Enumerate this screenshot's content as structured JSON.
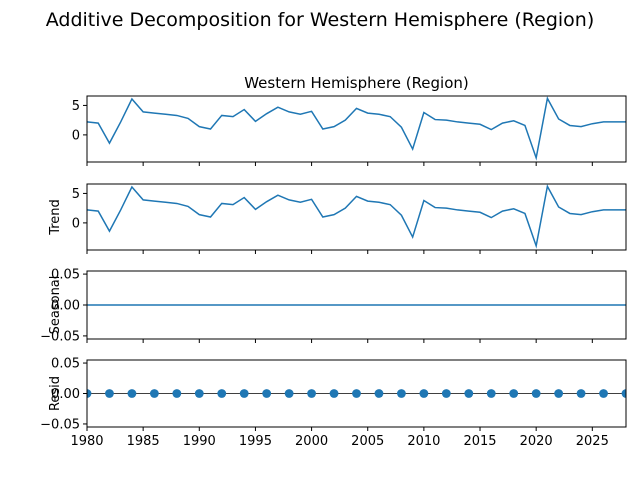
{
  "chart_data": {
    "type": "line",
    "title": "Additive Decomposition for Western Hemisphere (Region)",
    "x_ticks": [
      "1980",
      "1985",
      "1990",
      "1995",
      "2000",
      "2005",
      "2010",
      "2015",
      "2020",
      "2025"
    ],
    "xlim": [
      1980,
      2028
    ],
    "x": [
      1980,
      1981,
      1982,
      1983,
      1984,
      1985,
      1986,
      1987,
      1988,
      1989,
      1990,
      1991,
      1992,
      1993,
      1994,
      1995,
      1996,
      1997,
      1998,
      1999,
      2000,
      2001,
      2002,
      2003,
      2004,
      2005,
      2006,
      2007,
      2008,
      2009,
      2010,
      2011,
      2012,
      2013,
      2014,
      2015,
      2016,
      2017,
      2018,
      2019,
      2020,
      2021,
      2022,
      2023,
      2024,
      2025,
      2026,
      2027,
      2028
    ],
    "panels": [
      {
        "title": "Western Hemisphere (Region)",
        "ylabel": "",
        "ylim": [
          -4.6,
          6.6
        ],
        "yticks": [
          "5",
          "0"
        ],
        "ytick_values": [
          5,
          0
        ],
        "style": "line",
        "values": [
          2.2,
          2.0,
          -1.4,
          2.2,
          6.1,
          3.9,
          3.7,
          3.5,
          3.3,
          2.8,
          1.4,
          1.0,
          3.3,
          3.1,
          4.3,
          2.3,
          3.6,
          4.7,
          3.9,
          3.5,
          4.0,
          1.0,
          1.4,
          2.5,
          4.5,
          3.7,
          3.5,
          3.1,
          1.3,
          -2.4,
          3.8,
          2.6,
          2.5,
          2.2,
          2.0,
          1.8,
          0.9,
          2.0,
          2.4,
          1.6,
          -3.9,
          6.2,
          2.7,
          1.6,
          1.4,
          1.9,
          2.2,
          2.2,
          2.2
        ]
      },
      {
        "title": "",
        "ylabel": "Trend",
        "ylim": [
          -4.6,
          6.6
        ],
        "yticks": [
          "5",
          "0"
        ],
        "ytick_values": [
          5,
          0
        ],
        "style": "line",
        "values": [
          2.2,
          2.0,
          -1.4,
          2.2,
          6.1,
          3.9,
          3.7,
          3.5,
          3.3,
          2.8,
          1.4,
          1.0,
          3.3,
          3.1,
          4.3,
          2.3,
          3.6,
          4.7,
          3.9,
          3.5,
          4.0,
          1.0,
          1.4,
          2.5,
          4.5,
          3.7,
          3.5,
          3.1,
          1.3,
          -2.4,
          3.8,
          2.6,
          2.5,
          2.2,
          2.0,
          1.8,
          0.9,
          2.0,
          2.4,
          1.6,
          -3.9,
          6.2,
          2.7,
          1.6,
          1.4,
          1.9,
          2.2,
          2.2,
          2.2
        ]
      },
      {
        "title": "",
        "ylabel": "Seasonal",
        "ylim": [
          -0.055,
          0.055
        ],
        "yticks": [
          "0.05",
          "0.00",
          "−0.05"
        ],
        "ytick_values": [
          0.05,
          0.0,
          -0.05
        ],
        "style": "line",
        "values": [
          0,
          0,
          0,
          0,
          0,
          0,
          0,
          0,
          0,
          0,
          0,
          0,
          0,
          0,
          0,
          0,
          0,
          0,
          0,
          0,
          0,
          0,
          0,
          0,
          0,
          0,
          0,
          0,
          0,
          0,
          0,
          0,
          0,
          0,
          0,
          0,
          0,
          0,
          0,
          0,
          0,
          0,
          0,
          0,
          0,
          0,
          0,
          0,
          0
        ]
      },
      {
        "title": "",
        "ylabel": "Resid",
        "ylim": [
          -0.055,
          0.055
        ],
        "yticks": [
          "0.05",
          "0.00",
          "−0.05"
        ],
        "ytick_values": [
          0.05,
          0.0,
          -0.05
        ],
        "style": "dots",
        "values": [
          0,
          0,
          0,
          0,
          0,
          0,
          0,
          0,
          0,
          0,
          0,
          0,
          0,
          0,
          0,
          0,
          0,
          0,
          0,
          0,
          0,
          0,
          0,
          0,
          0,
          0,
          0,
          0,
          0,
          0,
          0,
          0,
          0,
          0,
          0,
          0,
          0,
          0,
          0,
          0,
          0,
          0,
          0,
          0,
          0,
          0,
          0,
          0,
          0
        ]
      }
    ],
    "colors": {
      "series": "#1f77b4",
      "axes": "#000000"
    }
  }
}
